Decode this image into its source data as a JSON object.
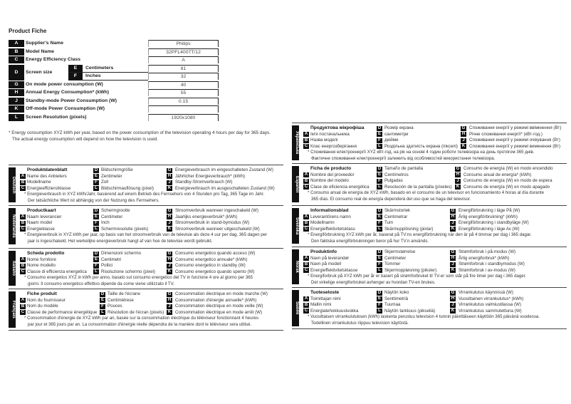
{
  "title": "Product Fiche",
  "table": [
    {
      "letter": "A",
      "label": "Supplier's Name",
      "value": "Philips"
    },
    {
      "letter": "B",
      "label": "Model Name",
      "value": "32PFL4007T/12"
    },
    {
      "letter": "C",
      "label": "Energy Efficiency Class",
      "value": "A"
    },
    {
      "letter": "D",
      "label": "Screen size",
      "sub": [
        {
          "letter": "E",
          "label": "Centimeters",
          "value": "81"
        },
        {
          "letter": "F",
          "label": "Inches",
          "value": "32"
        }
      ]
    },
    {
      "letter": "G",
      "label": "On mode power consumption (W)",
      "value": "40"
    },
    {
      "letter": "H",
      "label": "Annual Energy Consumption* (kWh)",
      "value": "55"
    },
    {
      "letter": "J",
      "label": "Standby-mode Power Consumption (W)",
      "value": "0.15"
    },
    {
      "letter": "K",
      "label": "Off-mode Power Consumption (W)",
      "value": ""
    },
    {
      "letter": "L",
      "label": "Screen Resolution (pixels)",
      "value": "1920x1080"
    }
  ],
  "footnote": [
    "* Energy consumption XYZ kWh per year, based on the power consumption of the television operating 4 hours per day for 365 days.",
    "The actual energy consumption will depend on how the television is used."
  ],
  "languages": [
    {
      "lang": "Deutsch",
      "title": "Produktdatenblatt",
      "A": "Name des Anbieters",
      "B": "Modellname",
      "C": "Energieeffizienzklasse",
      "D": "Bildschirmgröße",
      "E": "Zentimeter",
      "F": "Zoll",
      "L": "Bildschirmauflösung (pixel)",
      "G": "Energieverbrauch im eingeschalteten Zustand (W)",
      "H": "Jährlicher Energieverbrauch* (kWh)",
      "J": "Standby-Stromverbrauch (W)",
      "K": "Energieverbrauch im ausgeschalteten Zustand (W)",
      "note": [
        "* Energieverbrauch in XYZ kWh/Jahr, basierend auf einem Betrieb des Fernsehers von 4 Stunden pro Tag, 365 Tage im Jahr.",
        "Der tatsächliche Wert ist abhängig von der Nutzung des Fernsehers."
      ]
    },
    {
      "lang": "Nederlands",
      "title": "Productkaart",
      "A": "Naam leverancier",
      "B": "Naam model",
      "C": "Energieklasse",
      "D": "Schermgrootte",
      "E": "Centimeter",
      "F": "Inch",
      "L": "Schermresolutie (pixels)",
      "G": "Stroomverbruik wanneer ingeschakeld (W)",
      "H": "Jaarlijks energieverbruik* (kWh)",
      "J": "Stroomverbruik in stand-bymodus (W)",
      "K": "Stroomverbruik wanneer uitgeschakeld (W)",
      "note": [
        "* Energieverbruik in XYZ kWh per jaar, op basis van het stroomverbruik van de televisie als deze 4 uur per dag, 365 dagen per",
        "jaar is ingeschakeld. Het werkelijke energieverbruik hangt af van hoe de televisie wordt gebruikt."
      ]
    },
    {
      "lang": "Italiano",
      "title": "Scheda prodotto",
      "A": "Nome fornitore",
      "B": "Nome modello",
      "C": "Classe di efficienza energetica",
      "D": "Dimensioni schermo",
      "E": "Centimetri",
      "F": "Pollici",
      "L": "Risoluzione schermo (pixel)",
      "G": "Consumo energetico quando acceso (W)",
      "H": "Consumo energetico annuale* (kWh)",
      "J": "Consumo energetico in standby (W)",
      "K": "Consumo energetico quando spento (W)",
      "note": [
        "* Consumo energetico XYZ in kWh per anno, basato sul consumo energetico del TV in funzione 4 ore al giorno per 365",
        "giorni. Il consumo energetico effettivo dipende da come viene utilizzato il TV."
      ]
    },
    {
      "lang": "Français",
      "title": "Fiche produit",
      "A": "Nom du fournisseur",
      "B": "Nom du modèle",
      "C": "Classe de performance énergétique",
      "D": "Taille de l'écrane",
      "E": "Centimètrese",
      "F": "Pouces",
      "L": "Résolution de l'écran (pixels)",
      "G": "Consommation électrique en mode marche (W)",
      "H": "Consommation d'énergie annuelle* (kWh)",
      "J": "Consommation électrique en mode veille (W)",
      "K": "Consommation électrique en mode arrêt (W)",
      "note": [
        "* Consommation d'énergie de XYZ kWh par an, basée sur la consommation électrique du téléviseur fonctionnant 4 heures",
        "par jour et 365 jours par an. La consommation d'énergie réelle dépendra de la manière dont le téléviseur sera utilisé."
      ]
    },
    {
      "lang": "Українська",
      "title": "Продуктова мікрофіша",
      "A": "Ім'я постачальника",
      "B": "Назва моделі",
      "C": "Клас енергозберігання",
      "D": "Розмір екрана",
      "E": "сантиметри",
      "F": "дюйми",
      "L": "Роздільна здатність екрана (пікселі)",
      "G": "Споживання енергії у режимі ввімкнення (Вт)",
      "H": "Річне споживання енергії* (кВт-год.)",
      "J": "Споживання енергії у режимі очікування (Вт)",
      "K": "Споживання енергії у режимі вимкнення (Вт)",
      "note": [
        "* Споживання електроенергії XYZ кВт-год. на рік на основі 4 годин роботи телевізора на день протягом 365 днів.",
        "Фактичне споживання електроенергії залежить від особливостей використання телевізора."
      ]
    },
    {
      "lang": "Español",
      "title": "Ficha de producto",
      "A": "Nombre del proveedor",
      "B": "Nombre del modelo",
      "C": "Clase de eficiencia energética",
      "D": "Tamaño de pantalla",
      "E": "Centímetros",
      "F": "Pulgadas",
      "L": "Resolución de la pantalla (píxeles)",
      "G": "Consumo de energía (W) en modo encendido",
      "H": "Consumo anual de energía* (kWh)",
      "J": "Consumo de energía (W) en modo de espera",
      "K": "Consumo de energía (W) en modo apagado",
      "note": [
        "* Consumo anual de energía de XYZ kWh, basado en el consumo de un televisor en funcionamiento 4 horas al día durante",
        "365 días. El consumo real de energía dependerá del uso que se haga del televisor."
      ]
    },
    {
      "lang": "Svenska",
      "title": "Informationsblad",
      "A": "Leverantörens namn",
      "B": "Modellnamn",
      "C": "Energieffektivitetsklass",
      "D": "Skärmstorlek",
      "E": "Centimetrar",
      "F": "Tum",
      "L": "Skärmupplösning (pixlar)",
      "G": "Energiförbrukning i läge På (W)",
      "H": "Årlig energiförbrukning* (kWh)",
      "J": "Energiförbrukning i standbyläge (W)",
      "K": "Energiförbrukning i läge Av (W)",
      "note": [
        "* Energiförbrukning XYZ kWh per år, baserat på TV:ns energiförbrukning när den är på 4 timmar per dag i 365 dagar.",
        "Den faktiska energiförbrukningen beror på hur TV:n används."
      ]
    },
    {
      "lang": "Norsk",
      "title": "Produktinfo",
      "A": "Navn på leverandør",
      "B": "Navn på modell",
      "C": "Energieffektivitetsklasse",
      "D": "Skjermstørrelse",
      "E": "Centimeter",
      "F": "Tommer",
      "L": "Skjermoppløsning (piksler)",
      "G": "Strømforbruk i på-modus (W)",
      "H": "Årlig energiforbruk* (kWh)",
      "J": "Strømforbruk i standbymodus (W)",
      "K": "Strømforbruk i av-modus (W)",
      "note": [
        "* Energiforbruk på XYZ kWh per år er basert på strømforbruket til TV-er som står på fire timer per dag i 365 dager.",
        "Det virkelige energiforbruket avhenger av hvordan TV-en brukes."
      ]
    },
    {
      "lang": "Suomi",
      "title": "Tuoteseloste",
      "A": "Toimittajan nimi",
      "B": "Mallin nimi",
      "C": "Energiatehokkuusluokka",
      "D": "Näytön koko",
      "E": "Senttimetriä",
      "F": "Tuumaa",
      "L": "Näytön tarkkuus (pikseliä)",
      "G": "Virrankulutus käynnissä (W)",
      "H": "Vuosittainen virrankulutus* (kWh)",
      "J": "Virrankulutus valmiustilassa (W)",
      "K": "Virrankulutus sammutettuna (W)",
      "note": [
        "* Vuosittaisen virrankulutuksen (kWh) laskenta perustuu television 4 tunnin päivittäiseen käyttöön 365 päivänä vuodessa.",
        "Todellinen virrankulutus riippuu television käytöstä."
      ]
    }
  ]
}
